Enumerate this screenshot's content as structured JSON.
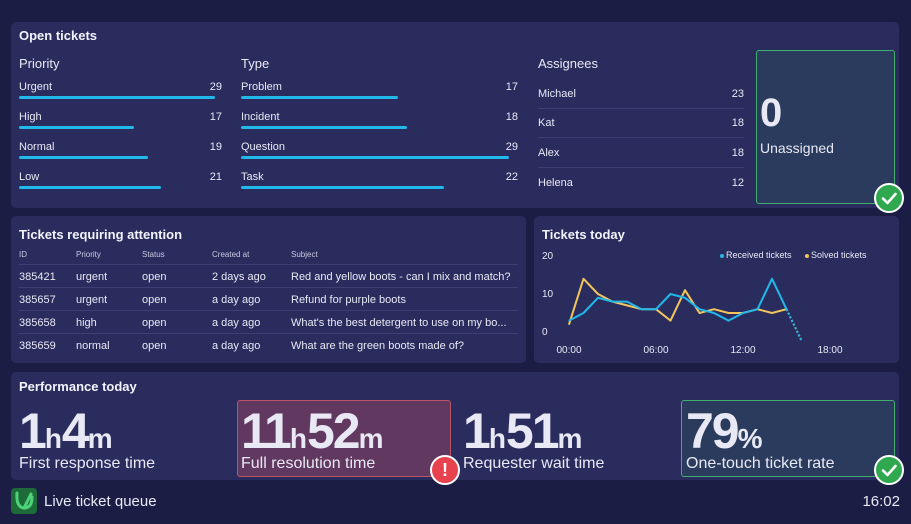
{
  "open_tickets": {
    "title": "Open tickets",
    "priority": {
      "title": "Priority",
      "items": [
        {
          "label": "Urgent",
          "value": 29
        },
        {
          "label": "High",
          "value": 17
        },
        {
          "label": "Normal",
          "value": 19
        },
        {
          "label": "Low",
          "value": 21
        }
      ]
    },
    "type": {
      "title": "Type",
      "items": [
        {
          "label": "Problem",
          "value": 17
        },
        {
          "label": "Incident",
          "value": 18
        },
        {
          "label": "Question",
          "value": 29
        },
        {
          "label": "Task",
          "value": 22
        }
      ]
    },
    "assignees": {
      "title": "Assignees",
      "items": [
        {
          "name": "Michael",
          "count": "23"
        },
        {
          "name": "Kat",
          "count": "18"
        },
        {
          "name": "Alex",
          "count": "18"
        },
        {
          "name": "Helena",
          "count": "12"
        }
      ]
    },
    "unassigned": {
      "value": "0",
      "label": "Unassigned"
    }
  },
  "attention": {
    "title": "Tickets requiring attention",
    "columns": [
      "ID",
      "Priority",
      "Status",
      "Created at",
      "Subject"
    ],
    "rows": [
      [
        "385421",
        "urgent",
        "open",
        "2 days ago",
        "Red and yellow boots - can I mix and match?"
      ],
      [
        "385657",
        "urgent",
        "open",
        "a day ago",
        "Refund for purple boots"
      ],
      [
        "385658",
        "high",
        "open",
        "a day ago",
        "What's the best detergent to use on my bo..."
      ],
      [
        "385659",
        "normal",
        "open",
        "a day ago",
        "What are the green boots made of?"
      ]
    ]
  },
  "chart_data": {
    "type": "line",
    "title": "Tickets today",
    "x": [
      "00:00",
      "01:00",
      "02:00",
      "03:00",
      "04:00",
      "05:00",
      "06:00",
      "07:00",
      "08:00",
      "09:00",
      "10:00",
      "11:00",
      "12:00",
      "13:00",
      "14:00",
      "15:00",
      "16:00"
    ],
    "x_ticks": [
      "00:00",
      "06:00",
      "12:00",
      "18:00"
    ],
    "y_ticks": [
      "0",
      "10",
      "20"
    ],
    "ylim": [
      0,
      20
    ],
    "xlim": [
      0,
      18
    ],
    "series": [
      {
        "name": "Received tickets",
        "color": "#21b8ea",
        "values": [
          3,
          5,
          9,
          8,
          8,
          6,
          6,
          10,
          9,
          6,
          5,
          3,
          5,
          6,
          14,
          6,
          -2
        ]
      },
      {
        "name": "Solved tickets",
        "color": "#f2c55c",
        "values": [
          2,
          14,
          10,
          8,
          7,
          6,
          6,
          3,
          11,
          5,
          6,
          5,
          5,
          6,
          5,
          6,
          -2
        ]
      }
    ]
  },
  "performance": {
    "title": "Performance today",
    "metrics": [
      {
        "num1": "1",
        "unit1": "h",
        "num2": "4",
        "unit2": "m",
        "label": "First response time"
      },
      {
        "num1": "11",
        "unit1": "h",
        "num2": "52",
        "unit2": "m",
        "label": "Full resolution time"
      },
      {
        "num1": "1",
        "unit1": "h",
        "num2": "51",
        "unit2": "m",
        "label": "Requester wait time"
      },
      {
        "num1": "79",
        "unit1": "%",
        "num2": "",
        "unit2": "",
        "label": "One-touch ticket rate"
      }
    ],
    "alert_glyph": "!"
  },
  "footer": {
    "title": "Live ticket queue",
    "time": "16:02"
  },
  "colors": {
    "accent": "#21b8ea",
    "solved": "#f2c55c",
    "good": "#2fa84f",
    "bad": "#e8424f"
  }
}
